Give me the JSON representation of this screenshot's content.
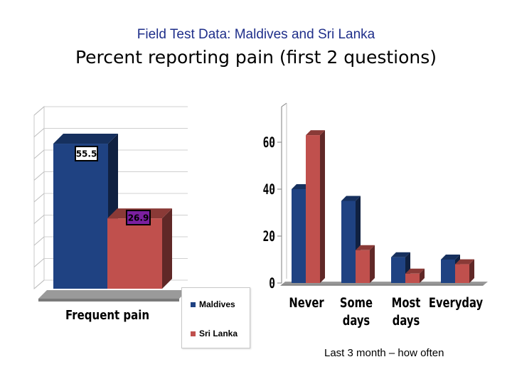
{
  "header": {
    "subtitle": "Field Test Data:  Maldives and Sri Lanka",
    "title": "Percent reporting pain (first 2 questions)"
  },
  "colors": {
    "maldives": "#1f4282",
    "sri_lanka": "#c0504d"
  },
  "legend": {
    "items": [
      {
        "name": "Maldives",
        "color": "#1f4282"
      },
      {
        "name": "Sri Lanka",
        "color": "#c0504d"
      }
    ]
  },
  "footnote": "Last 3 month – how often",
  "chart_data": [
    {
      "type": "bar",
      "title": "",
      "categories": [
        "Frequent pain"
      ],
      "series": [
        {
          "name": "Maldives",
          "values": [
            55.5
          ],
          "labels": [
            "55.5"
          ]
        },
        {
          "name": "Sri Lanka",
          "values": [
            26.9
          ],
          "labels": [
            "26.9"
          ]
        }
      ],
      "ylim": [
        0,
        80
      ],
      "gridlines": true,
      "xlabel": "",
      "ylabel": ""
    },
    {
      "type": "bar",
      "title": "",
      "categories": [
        "Never",
        "Some days",
        "Most days",
        "Everyday"
      ],
      "category_lines": [
        [
          "Never"
        ],
        [
          "Some",
          "days"
        ],
        [
          "Most",
          "days"
        ],
        [
          "Everyday"
        ]
      ],
      "series": [
        {
          "name": "Maldives",
          "values": [
            40,
            35,
            11,
            10
          ]
        },
        {
          "name": "Sri Lanka",
          "values": [
            63,
            14,
            4,
            8
          ]
        }
      ],
      "yticks": [
        0,
        20,
        40,
        60
      ],
      "ylim": [
        0,
        76
      ],
      "gridlines": false,
      "xlabel": "",
      "ylabel": "",
      "note": "Last 3 month – how often"
    }
  ]
}
